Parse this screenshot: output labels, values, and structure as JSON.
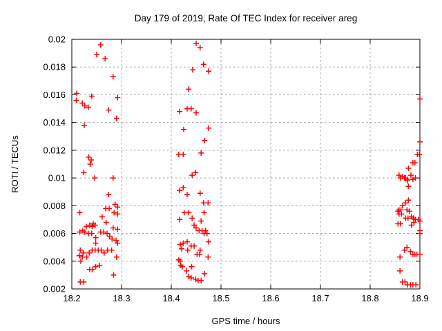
{
  "chart_data": {
    "type": "scatter",
    "title": "Day 179 of 2019, Rate Of TEC Index for receiver areg",
    "xlabel": "GPS time / hours",
    "ylabel": "ROTI / TECUs",
    "xlim": [
      18.2,
      18.9
    ],
    "ylim": [
      0.002,
      0.02
    ],
    "grid": true,
    "legend": "none",
    "marker": "plus",
    "colors": {
      "marker": "#ff0000",
      "grid": "#a0a0a0",
      "axis": "#000000",
      "background": "#ffffff"
    },
    "xticks": [
      {
        "value": 18.2,
        "label": "18.2"
      },
      {
        "value": 18.3,
        "label": "18.3"
      },
      {
        "value": 18.4,
        "label": "18.4"
      },
      {
        "value": 18.5,
        "label": "18.5"
      },
      {
        "value": 18.6,
        "label": "18.6"
      },
      {
        "value": 18.7,
        "label": "18.7"
      },
      {
        "value": 18.8,
        "label": "18.8"
      },
      {
        "value": 18.9,
        "label": "18.9"
      }
    ],
    "yticks": [
      {
        "value": 0.002,
        "label": "0.002"
      },
      {
        "value": 0.004,
        "label": "0.004"
      },
      {
        "value": 0.006,
        "label": "0.006"
      },
      {
        "value": 0.008,
        "label": "0.008"
      },
      {
        "value": 0.01,
        "label": "0.01"
      },
      {
        "value": 0.012,
        "label": "0.012"
      },
      {
        "value": 0.014,
        "label": "0.014"
      },
      {
        "value": 0.016,
        "label": "0.016"
      },
      {
        "value": 0.018,
        "label": "0.018"
      },
      {
        "value": 0.02,
        "label": "0.02"
      }
    ],
    "series": [
      {
        "name": "ROTI",
        "marker": "plus",
        "color": "#ff0000",
        "points": [
          [
            18.258,
            0.0196
          ],
          [
            18.25,
            0.0189
          ],
          [
            18.267,
            0.0186
          ],
          [
            18.283,
            0.0173
          ],
          [
            18.21,
            0.0161
          ],
          [
            18.24,
            0.0159
          ],
          [
            18.292,
            0.0158
          ],
          [
            18.209,
            0.0156
          ],
          [
            18.221,
            0.0154
          ],
          [
            18.226,
            0.0152
          ],
          [
            18.233,
            0.0151
          ],
          [
            18.274,
            0.0149
          ],
          [
            18.29,
            0.0143
          ],
          [
            18.225,
            0.0138
          ],
          [
            18.234,
            0.0115
          ],
          [
            18.239,
            0.0113
          ],
          [
            18.237,
            0.011
          ],
          [
            18.224,
            0.0104
          ],
          [
            18.246,
            0.01
          ],
          [
            18.283,
            0.01
          ],
          [
            18.274,
            0.0088
          ],
          [
            18.287,
            0.0081
          ],
          [
            18.268,
            0.0078
          ],
          [
            18.275,
            0.0078
          ],
          [
            18.292,
            0.0079
          ],
          [
            18.216,
            0.0075
          ],
          [
            18.285,
            0.0075
          ],
          [
            18.292,
            0.0074
          ],
          [
            18.261,
            0.0072
          ],
          [
            18.269,
            0.0068
          ],
          [
            18.243,
            0.0067
          ],
          [
            18.236,
            0.0066
          ],
          [
            18.247,
            0.0066
          ],
          [
            18.241,
            0.0065
          ],
          [
            18.229,
            0.0065
          ],
          [
            18.283,
            0.0064
          ],
          [
            18.292,
            0.0063
          ],
          [
            18.222,
            0.0062
          ],
          [
            18.216,
            0.0061
          ],
          [
            18.226,
            0.0061
          ],
          [
            18.234,
            0.006
          ],
          [
            18.24,
            0.006
          ],
          [
            18.258,
            0.0061
          ],
          [
            18.264,
            0.0061
          ],
          [
            18.271,
            0.006
          ],
          [
            18.276,
            0.0058
          ],
          [
            18.281,
            0.0056
          ],
          [
            18.289,
            0.0055
          ],
          [
            18.248,
            0.0057
          ],
          [
            18.248,
            0.0053
          ],
          [
            18.292,
            0.0053
          ],
          [
            18.217,
            0.0048
          ],
          [
            18.223,
            0.0046
          ],
          [
            18.241,
            0.0048
          ],
          [
            18.247,
            0.0048
          ],
          [
            18.235,
            0.0046
          ],
          [
            18.253,
            0.0048
          ],
          [
            18.259,
            0.0048
          ],
          [
            18.265,
            0.0046
          ],
          [
            18.272,
            0.0048
          ],
          [
            18.28,
            0.0048
          ],
          [
            18.215,
            0.0044
          ],
          [
            18.221,
            0.0043
          ],
          [
            18.23,
            0.0043
          ],
          [
            18.29,
            0.0043
          ],
          [
            18.218,
            0.004
          ],
          [
            18.236,
            0.0034
          ],
          [
            18.241,
            0.0034
          ],
          [
            18.248,
            0.0036
          ],
          [
            18.256,
            0.0037
          ],
          [
            18.284,
            0.003
          ],
          [
            18.217,
            0.0025
          ],
          [
            18.224,
            0.0025
          ],
          [
            18.45,
            0.0197
          ],
          [
            18.458,
            0.0194
          ],
          [
            18.465,
            0.0182
          ],
          [
            18.443,
            0.0178
          ],
          [
            18.475,
            0.0177
          ],
          [
            18.435,
            0.0164
          ],
          [
            18.417,
            0.0148
          ],
          [
            18.432,
            0.015
          ],
          [
            18.44,
            0.015
          ],
          [
            18.45,
            0.0147
          ],
          [
            18.425,
            0.0135
          ],
          [
            18.475,
            0.0136
          ],
          [
            18.467,
            0.0127
          ],
          [
            18.415,
            0.0117
          ],
          [
            18.424,
            0.0117
          ],
          [
            18.46,
            0.0118
          ],
          [
            18.442,
            0.0102
          ],
          [
            18.449,
            0.0104
          ],
          [
            18.424,
            0.0093
          ],
          [
            18.417,
            0.0091
          ],
          [
            18.432,
            0.0088
          ],
          [
            18.458,
            0.0089
          ],
          [
            18.465,
            0.0082
          ],
          [
            18.474,
            0.0082
          ],
          [
            18.426,
            0.0075
          ],
          [
            18.435,
            0.0075
          ],
          [
            18.417,
            0.007
          ],
          [
            18.442,
            0.0071
          ],
          [
            18.46,
            0.0069
          ],
          [
            18.466,
            0.0075
          ],
          [
            18.446,
            0.0066
          ],
          [
            18.45,
            0.0064
          ],
          [
            18.456,
            0.0062
          ],
          [
            18.462,
            0.0062
          ],
          [
            18.469,
            0.0062
          ],
          [
            18.466,
            0.006
          ],
          [
            18.472,
            0.006
          ],
          [
            18.475,
            0.0054
          ],
          [
            18.418,
            0.0052
          ],
          [
            18.424,
            0.0053
          ],
          [
            18.432,
            0.0054
          ],
          [
            18.421,
            0.0049
          ],
          [
            18.433,
            0.0048
          ],
          [
            18.44,
            0.0051
          ],
          [
            18.446,
            0.0051
          ],
          [
            18.452,
            0.0045
          ],
          [
            18.457,
            0.0045
          ],
          [
            18.458,
            0.0048
          ],
          [
            18.474,
            0.0043
          ],
          [
            18.415,
            0.0041
          ],
          [
            18.418,
            0.004
          ],
          [
            18.419,
            0.0037
          ],
          [
            18.422,
            0.0036
          ],
          [
            18.431,
            0.0033
          ],
          [
            18.441,
            0.0036
          ],
          [
            18.435,
            0.0029
          ],
          [
            18.44,
            0.0028
          ],
          [
            18.449,
            0.0027
          ],
          [
            18.454,
            0.0026
          ],
          [
            18.46,
            0.0026
          ],
          [
            18.467,
            0.0031
          ],
          [
            18.9,
            0.0157
          ],
          [
            18.9,
            0.0126
          ],
          [
            18.895,
            0.0117
          ],
          [
            18.899,
            0.0117
          ],
          [
            18.886,
            0.0111
          ],
          [
            18.89,
            0.0111
          ],
          [
            18.877,
            0.0107
          ],
          [
            18.858,
            0.0102
          ],
          [
            18.865,
            0.0101
          ],
          [
            18.871,
            0.01
          ],
          [
            18.875,
            0.0099
          ],
          [
            18.882,
            0.0102
          ],
          [
            18.886,
            0.0099
          ],
          [
            18.861,
            0.01
          ],
          [
            18.869,
            0.01
          ],
          [
            18.891,
            0.01
          ],
          [
            18.875,
            0.0098
          ],
          [
            18.877,
            0.0094
          ],
          [
            18.877,
            0.0084
          ],
          [
            18.871,
            0.0082
          ],
          [
            18.865,
            0.008
          ],
          [
            18.858,
            0.0077
          ],
          [
            18.862,
            0.0077
          ],
          [
            18.856,
            0.0076
          ],
          [
            18.874,
            0.0077
          ],
          [
            18.879,
            0.0076
          ],
          [
            18.858,
            0.0074
          ],
          [
            18.863,
            0.0074
          ],
          [
            18.871,
            0.0071
          ],
          [
            18.876,
            0.0071
          ],
          [
            18.883,
            0.0072
          ],
          [
            18.887,
            0.0071
          ],
          [
            18.891,
            0.007
          ],
          [
            18.897,
            0.007
          ],
          [
            18.856,
            0.0067
          ],
          [
            18.861,
            0.0067
          ],
          [
            18.883,
            0.0066
          ],
          [
            18.888,
            0.0068
          ],
          [
            18.9,
            0.0069
          ],
          [
            18.9,
            0.0062
          ],
          [
            18.9,
            0.006
          ],
          [
            18.869,
            0.0048
          ],
          [
            18.874,
            0.005
          ],
          [
            18.881,
            0.0047
          ],
          [
            18.886,
            0.0045
          ],
          [
            18.89,
            0.0045
          ],
          [
            18.894,
            0.0045
          ],
          [
            18.9,
            0.0045
          ],
          [
            18.86,
            0.0043
          ],
          [
            18.86,
            0.0033
          ],
          [
            18.865,
            0.0025
          ],
          [
            18.87,
            0.0025
          ],
          [
            18.875,
            0.0023
          ],
          [
            18.881,
            0.0023
          ],
          [
            18.886,
            0.0023
          ],
          [
            18.892,
            0.0023
          ]
        ]
      }
    ]
  }
}
